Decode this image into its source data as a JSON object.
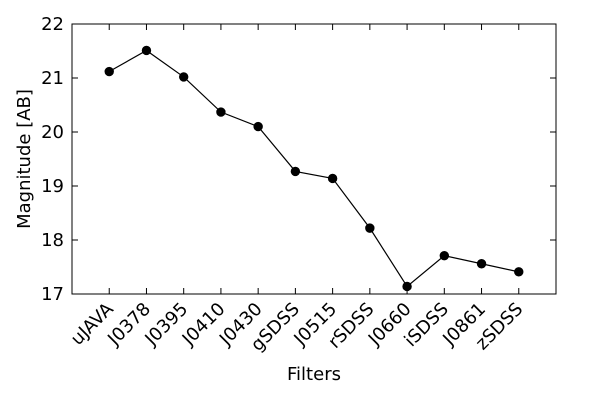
{
  "chart_data": {
    "type": "line",
    "title": "",
    "xlabel": "Filters",
    "ylabel": "Magnitude [AB]",
    "ylim": [
      17,
      22
    ],
    "yticks": [
      17,
      18,
      19,
      20,
      21,
      22
    ],
    "grid": false,
    "categories": [
      "uJAVA",
      "J0378",
      "J0395",
      "J0410",
      "J0430",
      "gSDSS",
      "J0515",
      "rSDSS",
      "J0660",
      "iSDSS",
      "J0861",
      "zSDSS"
    ],
    "series": [
      {
        "color": "#000000",
        "marker": "circle",
        "values": [
          21.12,
          21.51,
          21.02,
          20.37,
          20.1,
          19.27,
          19.14,
          18.22,
          17.14,
          17.71,
          17.56,
          17.41
        ]
      }
    ]
  }
}
